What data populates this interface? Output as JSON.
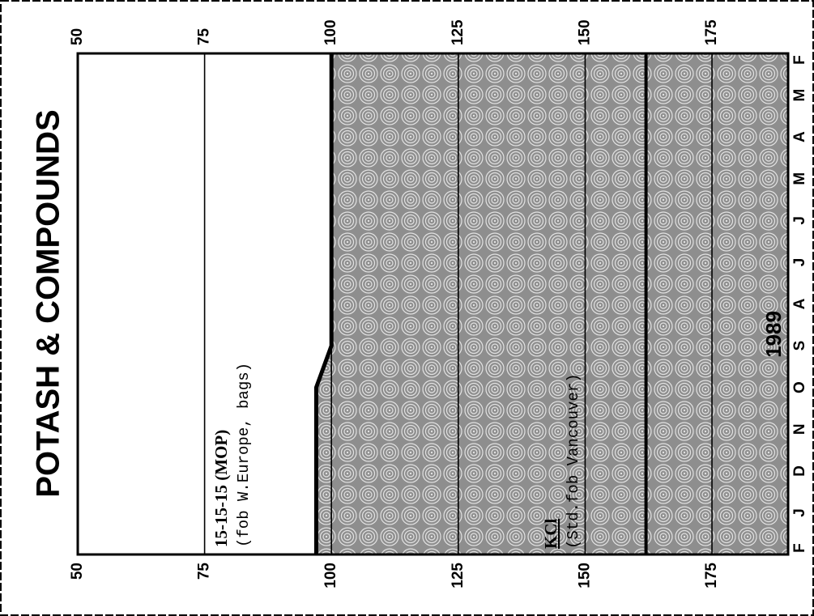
{
  "chart_data": {
    "type": "area",
    "title": "POTASH & COMPOUNDS",
    "year_label": "1989",
    "y_ticks": [
      50,
      75,
      100,
      125,
      150,
      175
    ],
    "ylim": [
      50,
      190
    ],
    "categories": [
      "F",
      "M",
      "A",
      "M",
      "J",
      "J",
      "A",
      "S",
      "O",
      "N",
      "D",
      "J",
      "F"
    ],
    "series": [
      {
        "name": "KCl",
        "label_parts": [
          "KCl",
          "(Std.fob Vancouver)"
        ],
        "values": [
          100,
          100,
          100,
          100,
          100,
          100,
          100,
          100,
          97,
          97,
          97,
          97,
          97
        ]
      },
      {
        "name": "15-15-15 (MOP)",
        "label_parts": [
          "15-15-15",
          "(MOP)",
          "(fob W.Europe, bags)"
        ],
        "values": [
          162,
          162,
          162,
          162,
          162,
          162,
          162,
          162,
          162,
          162,
          162,
          162,
          162
        ]
      }
    ],
    "grid": true
  }
}
